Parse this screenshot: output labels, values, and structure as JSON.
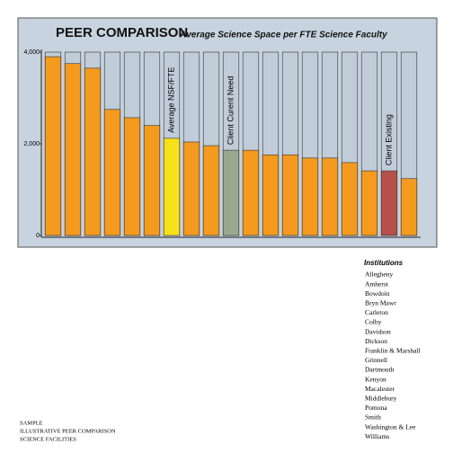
{
  "chart_data": {
    "type": "bar",
    "title": "PEER COMPARISON",
    "subtitle": "Average Science Space per FTE Science Faculty",
    "categories": [
      null,
      null,
      null,
      null,
      null,
      null,
      "Average NSF/FTE",
      null,
      null,
      "Client Curent Need",
      null,
      null,
      null,
      null,
      null,
      null,
      null,
      "Client Existing",
      null
    ],
    "values": [
      3900,
      3750,
      3650,
      2750,
      2570,
      2400,
      2120,
      2040,
      1960,
      1860,
      1860,
      1760,
      1760,
      1690,
      1690,
      1590,
      1410,
      1410,
      1240
    ],
    "colors": [
      "#f39a1f",
      "#f39a1f",
      "#f39a1f",
      "#f39a1f",
      "#f39a1f",
      "#f39a1f",
      "#f7e21a",
      "#f39a1f",
      "#f39a1f",
      "#9aa88e",
      "#f39a1f",
      "#f39a1f",
      "#f39a1f",
      "#f39a1f",
      "#f39a1f",
      "#f39a1f",
      "#f39a1f",
      "#b5504a",
      "#f39a1f"
    ],
    "ylim": [
      0,
      4000
    ],
    "yticks": [
      0,
      {
        "value": 2000,
        "label": "2,000"
      },
      {
        "value": 4000,
        "label": "4,000"
      }
    ]
  },
  "legend": {
    "title": "Institutions",
    "items": [
      "Allegheny",
      "Amherst",
      "Bowdoin",
      "Bryn Mawr",
      "Carleton",
      "Colby",
      "Davidson",
      "Dickson",
      "Franklin & Marshall",
      "Grinnell",
      "Dartmouth",
      "Kenyon",
      "Macalester",
      "Middlebury",
      "Pomona",
      "Smith",
      "Washington & Lee",
      "Williams"
    ]
  },
  "footer": [
    "SAMPLE",
    "ILLUSTRATIVE PEER COMPARISON",
    "SCIENCE FACILITIES"
  ]
}
